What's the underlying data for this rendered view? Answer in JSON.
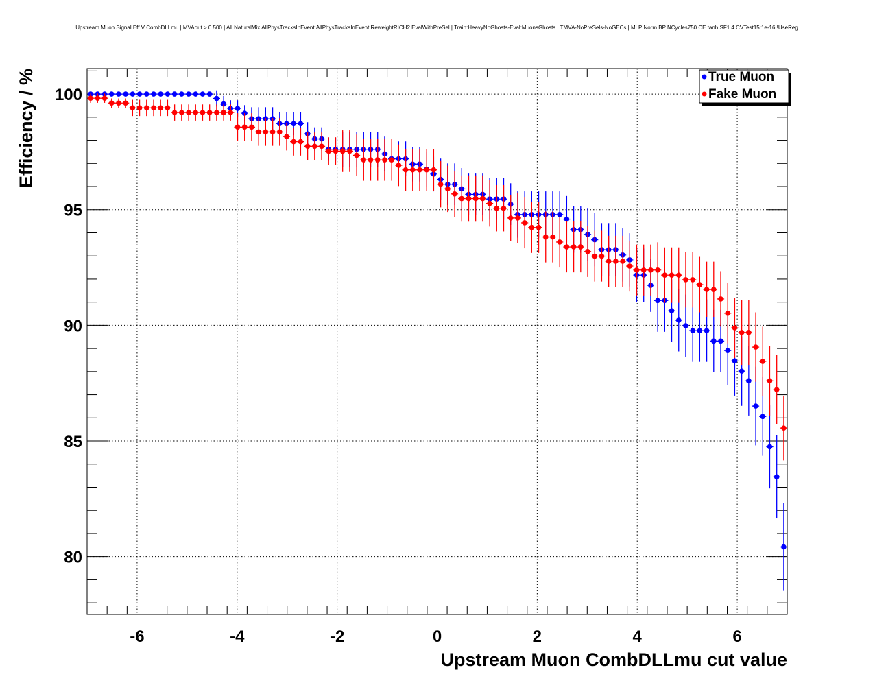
{
  "chart_data": {
    "type": "scatter",
    "title": "Upstream Muon Signal Eff V CombDLLmu | MVAout > 0.500 | All NaturalMix AllPhysTracksInEvent:AllPhysTracksInEvent ReweightRICH2 EvalWithPreSel | Train:HeavyNoGhosts-Eval:MuonsGhosts | TMVA-NoPreSels-NoGECs | MLP Norm BP NCycles750 CE tanh SF1.4 CVTest15:1e-16 !UseReg",
    "xlabel": "Upstream Muon CombDLLmu cut value",
    "ylabel": "Efficiency / %",
    "xlim": [
      -7,
      7
    ],
    "ylim": [
      77.5,
      101.1
    ],
    "xticks": [
      -6,
      -4,
      -2,
      0,
      2,
      4,
      6
    ],
    "xtick_labels": [
      "-6",
      "-4",
      "-2",
      "0",
      "2",
      "4",
      "6"
    ],
    "yticks": [
      80,
      85,
      90,
      95,
      100
    ],
    "ytick_labels": [
      "80",
      "85",
      "90",
      "95",
      "100"
    ],
    "grid": true,
    "legend_position": "top-right",
    "x_start": -6.93,
    "x_step": 0.14,
    "x_halfwidth": 0.07,
    "series": [
      {
        "name": "True Muon",
        "color": "#0000ff",
        "values": [
          100,
          100,
          100,
          100,
          100,
          100,
          100,
          100,
          100,
          100,
          100,
          100,
          100,
          100,
          100,
          100,
          100,
          100,
          99.81,
          99.57,
          99.38,
          99.38,
          99.17,
          98.93,
          98.93,
          98.93,
          98.93,
          98.72,
          98.72,
          98.72,
          98.72,
          98.28,
          98.06,
          98.06,
          97.61,
          97.61,
          97.61,
          97.61,
          97.61,
          97.61,
          97.61,
          97.61,
          97.41,
          97.2,
          97.2,
          97.2,
          96.97,
          96.97,
          96.75,
          96.54,
          96.31,
          96.1,
          96.1,
          95.9,
          95.66,
          95.66,
          95.66,
          95.46,
          95.46,
          95.46,
          95.24,
          94.79,
          94.79,
          94.79,
          94.79,
          94.79,
          94.79,
          94.79,
          94.59,
          94.14,
          94.14,
          93.93,
          93.7,
          93.27,
          93.27,
          93.27,
          93.04,
          92.83,
          92.17,
          92.17,
          91.73,
          91.07,
          91.07,
          90.63,
          90.22,
          89.98,
          89.77,
          89.77,
          89.77,
          89.32,
          89.32,
          88.91,
          88.46,
          88.02,
          87.6,
          86.51,
          86.06,
          84.75,
          83.45,
          80.42
        ],
        "errors": [
          0.02,
          0.02,
          0.02,
          0.02,
          0.02,
          0.02,
          0.02,
          0.02,
          0.02,
          0.02,
          0.02,
          0.02,
          0.02,
          0.02,
          0.02,
          0.02,
          0.02,
          0.02,
          0.35,
          0.35,
          0.35,
          0.35,
          0.35,
          0.5,
          0.5,
          0.5,
          0.5,
          0.5,
          0.5,
          0.5,
          0.5,
          0.5,
          0.5,
          0.5,
          0.5,
          0.5,
          0.75,
          0.75,
          0.75,
          0.75,
          0.75,
          0.75,
          0.75,
          0.75,
          0.75,
          0.75,
          0.75,
          0.75,
          0.75,
          0.75,
          0.9,
          0.9,
          0.9,
          0.9,
          0.9,
          0.9,
          0.9,
          0.9,
          0.9,
          0.9,
          0.9,
          1.0,
          1.0,
          1.0,
          1.0,
          1.0,
          1.0,
          1.0,
          1.0,
          1.0,
          1.0,
          1.15,
          1.15,
          1.15,
          1.15,
          1.15,
          1.15,
          1.15,
          1.15,
          1.15,
          1.15,
          1.35,
          1.35,
          1.35,
          1.35,
          1.35,
          1.35,
          1.35,
          1.35,
          1.35,
          1.35,
          1.5,
          1.5,
          1.5,
          1.5,
          1.7,
          1.7,
          1.8,
          1.8,
          1.9
        ]
      },
      {
        "name": "Fake Muon",
        "color": "#ff0000",
        "values": [
          99.82,
          99.82,
          99.82,
          99.61,
          99.61,
          99.61,
          99.4,
          99.4,
          99.4,
          99.4,
          99.4,
          99.4,
          99.2,
          99.2,
          99.2,
          99.2,
          99.2,
          99.2,
          99.2,
          99.2,
          99.2,
          98.57,
          98.57,
          98.57,
          98.36,
          98.36,
          98.36,
          98.36,
          98.16,
          97.94,
          97.94,
          97.74,
          97.74,
          97.74,
          97.53,
          97.53,
          97.53,
          97.53,
          97.35,
          97.15,
          97.15,
          97.15,
          97.15,
          97.15,
          96.92,
          96.72,
          96.72,
          96.72,
          96.72,
          96.72,
          96.1,
          95.9,
          95.68,
          95.48,
          95.48,
          95.48,
          95.48,
          95.27,
          95.06,
          95.06,
          94.64,
          94.64,
          94.43,
          94.23,
          94.23,
          93.82,
          93.82,
          93.6,
          93.39,
          93.39,
          93.39,
          93.19,
          92.99,
          92.99,
          92.77,
          92.77,
          92.77,
          92.56,
          92.39,
          92.39,
          92.39,
          92.39,
          92.17,
          92.17,
          92.17,
          91.97,
          91.97,
          91.76,
          91.55,
          91.55,
          91.14,
          90.52,
          89.89,
          89.69,
          89.69,
          89.06,
          88.44,
          87.6,
          87.22,
          85.56
        ],
        "errors": [
          0.2,
          0.2,
          0.2,
          0.2,
          0.2,
          0.2,
          0.35,
          0.35,
          0.35,
          0.35,
          0.35,
          0.35,
          0.35,
          0.35,
          0.35,
          0.35,
          0.35,
          0.35,
          0.35,
          0.35,
          0.35,
          0.6,
          0.6,
          0.6,
          0.6,
          0.6,
          0.6,
          0.6,
          0.6,
          0.6,
          0.6,
          0.6,
          0.6,
          0.6,
          0.6,
          0.6,
          0.9,
          0.9,
          0.9,
          0.9,
          0.9,
          0.9,
          0.9,
          0.9,
          0.9,
          0.9,
          0.9,
          0.9,
          0.9,
          0.9,
          1.0,
          1.0,
          1.0,
          1.0,
          1.0,
          1.0,
          1.0,
          1.0,
          1.0,
          1.0,
          1.0,
          1.1,
          1.1,
          1.1,
          1.1,
          1.1,
          1.1,
          1.1,
          1.1,
          1.1,
          1.1,
          1.1,
          1.1,
          1.1,
          1.1,
          1.1,
          1.1,
          1.1,
          1.1,
          1.1,
          1.1,
          1.2,
          1.2,
          1.2,
          1.2,
          1.2,
          1.2,
          1.2,
          1.2,
          1.2,
          1.2,
          1.3,
          1.3,
          1.4,
          1.4,
          1.5,
          1.5,
          1.5,
          1.5,
          1.4
        ]
      }
    ]
  }
}
